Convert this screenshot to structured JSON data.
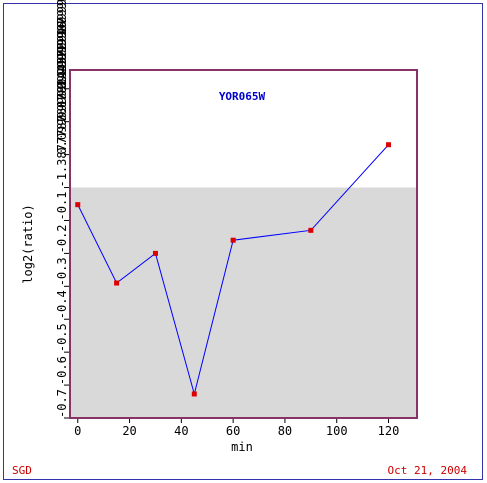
{
  "chart_data": {
    "type": "line",
    "title": "YOR065W",
    "x_label": "min",
    "y_label": "log2(ratio)",
    "x": [
      0,
      15,
      30,
      45,
      60,
      90,
      120
    ],
    "series": [
      {
        "values": [
          -0.052,
          -0.29,
          -0.2,
          -0.627,
          -0.16,
          -0.13,
          0.13
        ],
        "color": "#0000ff",
        "marker_color": "#dd0000"
      }
    ],
    "xlim": [
      -3,
      131
    ],
    "xticks": [
      0,
      20,
      40,
      60,
      80,
      100,
      120
    ],
    "ylim": [
      -0.7,
      0.357
    ],
    "yticks": [
      -0.7,
      -0.6,
      -0.5,
      -0.4,
      -0.3,
      -0.2,
      -0.1,
      {
        "value": 0,
        "label": "-1.3877787807814457E-16"
      },
      {
        "value": 0.1,
        "label": "0.09999999999999987"
      },
      {
        "value": 0.2,
        "label": "0.19999999999999987"
      },
      {
        "value": 0.3,
        "label": "0.2999999999999999"
      }
    ],
    "negative_shade": "#d9d9d9",
    "footer_left": "SGD",
    "footer_right": "Oct 21, 2004"
  }
}
